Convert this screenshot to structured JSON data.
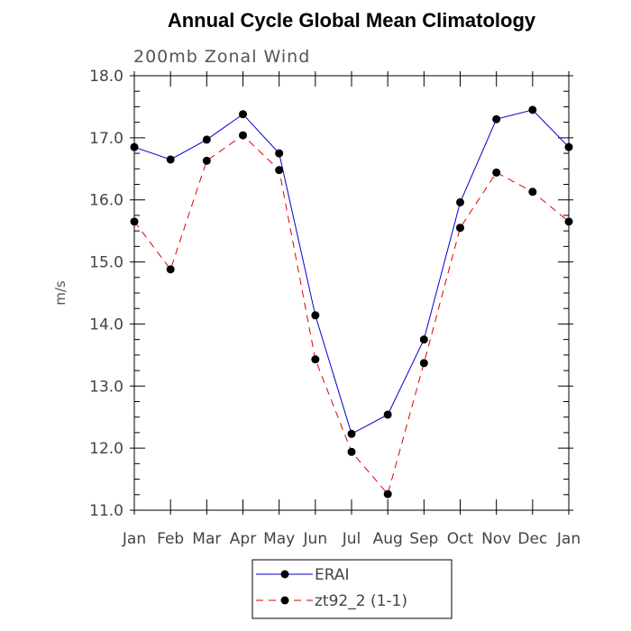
{
  "chart_data": {
    "type": "line",
    "title": "Annual Cycle Global Mean Climatology",
    "subtitle": "200mb Zonal Wind",
    "ylabel": "m/s",
    "xlabel": "",
    "ylim": [
      11.0,
      18.0
    ],
    "yticks": [
      "11.0",
      "12.0",
      "13.0",
      "14.0",
      "15.0",
      "16.0",
      "17.0",
      "18.0"
    ],
    "categories": [
      "Jan",
      "Feb",
      "Mar",
      "Apr",
      "May",
      "Jun",
      "Jul",
      "Aug",
      "Sep",
      "Oct",
      "Nov",
      "Dec",
      "Jan"
    ],
    "grid": false,
    "legend_position": "bottom",
    "series": [
      {
        "name": "ERAI",
        "color": "#0000cc",
        "line_style": "solid",
        "marker": "filled-circle",
        "values": [
          16.85,
          16.65,
          16.97,
          17.38,
          16.75,
          14.14,
          12.23,
          12.54,
          13.75,
          15.96,
          17.3,
          17.45,
          16.85
        ]
      },
      {
        "name": "zt92_2 (1-1)",
        "color": "#dd0000",
        "line_style": "dashed",
        "marker": "filled-circle",
        "values": [
          15.65,
          14.88,
          16.63,
          17.04,
          16.48,
          13.43,
          11.94,
          11.26,
          13.37,
          15.55,
          16.44,
          16.13,
          15.65
        ]
      }
    ]
  }
}
